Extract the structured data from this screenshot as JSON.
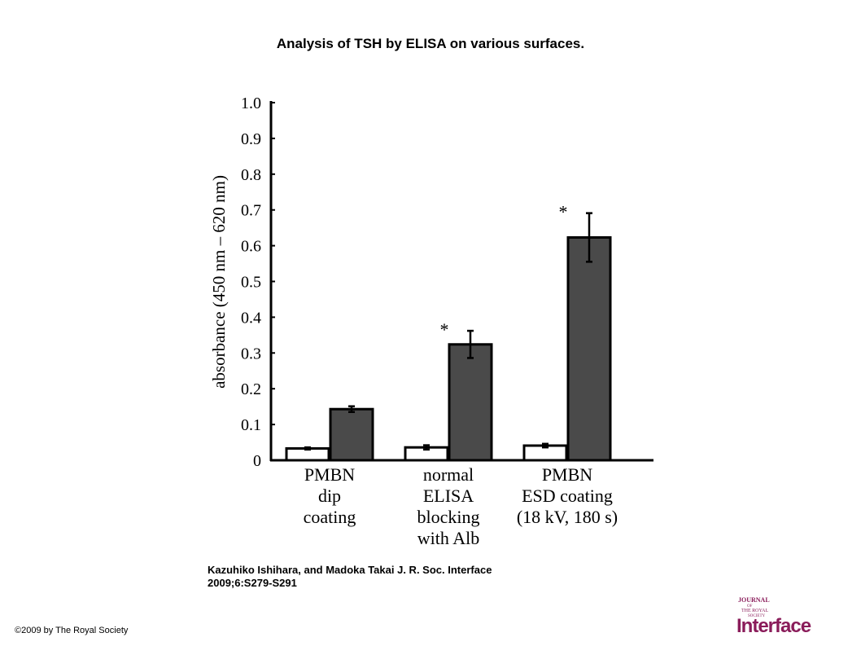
{
  "title": "Analysis of TSH by ELISA on various surfaces.",
  "citation": {
    "line1": "Kazuhiko Ishihara, and Madoka Takai J. R. Soc. Interface",
    "line2": "2009;6:S279-S291"
  },
  "copyright": "©2009 by The Royal Society",
  "logo": {
    "word_journal": "JOURNAL",
    "word_of": "OF",
    "word_the_royal": "THE ROYAL",
    "word_society": "SOCIETY",
    "word_interface": "Interface",
    "color": "#8a1c5a"
  },
  "chart_data": {
    "type": "bar",
    "ylabel": "absorbance (450 nm – 620 nm)",
    "ylim": [
      0,
      1.0
    ],
    "yticks": [
      "0",
      "0.1",
      "0.2",
      "0.3",
      "0.4",
      "0.5",
      "0.6",
      "0.7",
      "0.8",
      "0.9",
      "1.0"
    ],
    "categories": [
      [
        "PMBN",
        "dip",
        "coating"
      ],
      [
        "normal",
        "ELISA",
        "blocking",
        "with Alb"
      ],
      [
        "PMBN",
        "ESD coating",
        "(18 kV, 180 s)"
      ]
    ],
    "series": [
      {
        "fill": "#ffffff",
        "values": [
          0.033,
          0.036,
          0.041
        ],
        "errors": [
          0.003,
          0.006,
          0.005
        ]
      },
      {
        "fill": "#4a4a4a",
        "values": [
          0.143,
          0.324,
          0.623
        ],
        "errors": [
          0.008,
          0.038,
          0.068
        ]
      }
    ],
    "annotations": [
      {
        "category_index": 1,
        "text": "*"
      },
      {
        "category_index": 2,
        "text": "*"
      }
    ]
  }
}
